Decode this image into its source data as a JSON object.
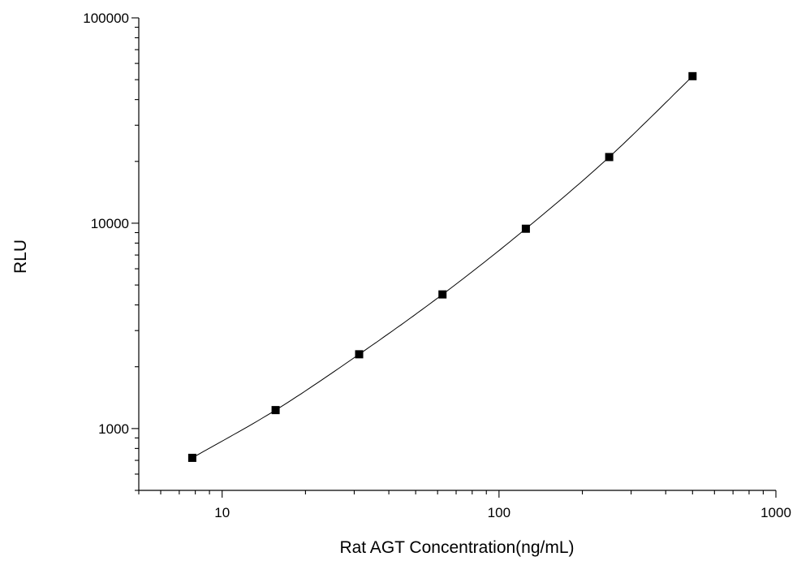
{
  "chart_data": {
    "type": "scatter",
    "title": "",
    "xlabel": "Rat AGT Concentration(ng/mL)",
    "ylabel": "RLU",
    "xscale": "log",
    "yscale": "log",
    "xlim": [
      5,
      1000
    ],
    "ylim": [
      500,
      100000
    ],
    "x_ticks": [
      10,
      100,
      1000
    ],
    "x_tick_labels": [
      "10",
      "100",
      "1000"
    ],
    "y_ticks": [
      1000,
      10000,
      100000
    ],
    "y_tick_labels": [
      "1000",
      "10000",
      "100000"
    ],
    "grid": false,
    "legend": "none",
    "fit_line": true,
    "colors": {
      "marker": "#000000",
      "line": "#000000",
      "axis": "#000000"
    },
    "series": [
      {
        "marker": "square",
        "x": [
          7.8,
          15.6,
          31.25,
          62.5,
          125,
          250,
          500
        ],
        "y": [
          720,
          1230,
          2300,
          4500,
          9400,
          21000,
          52000
        ]
      }
    ]
  }
}
